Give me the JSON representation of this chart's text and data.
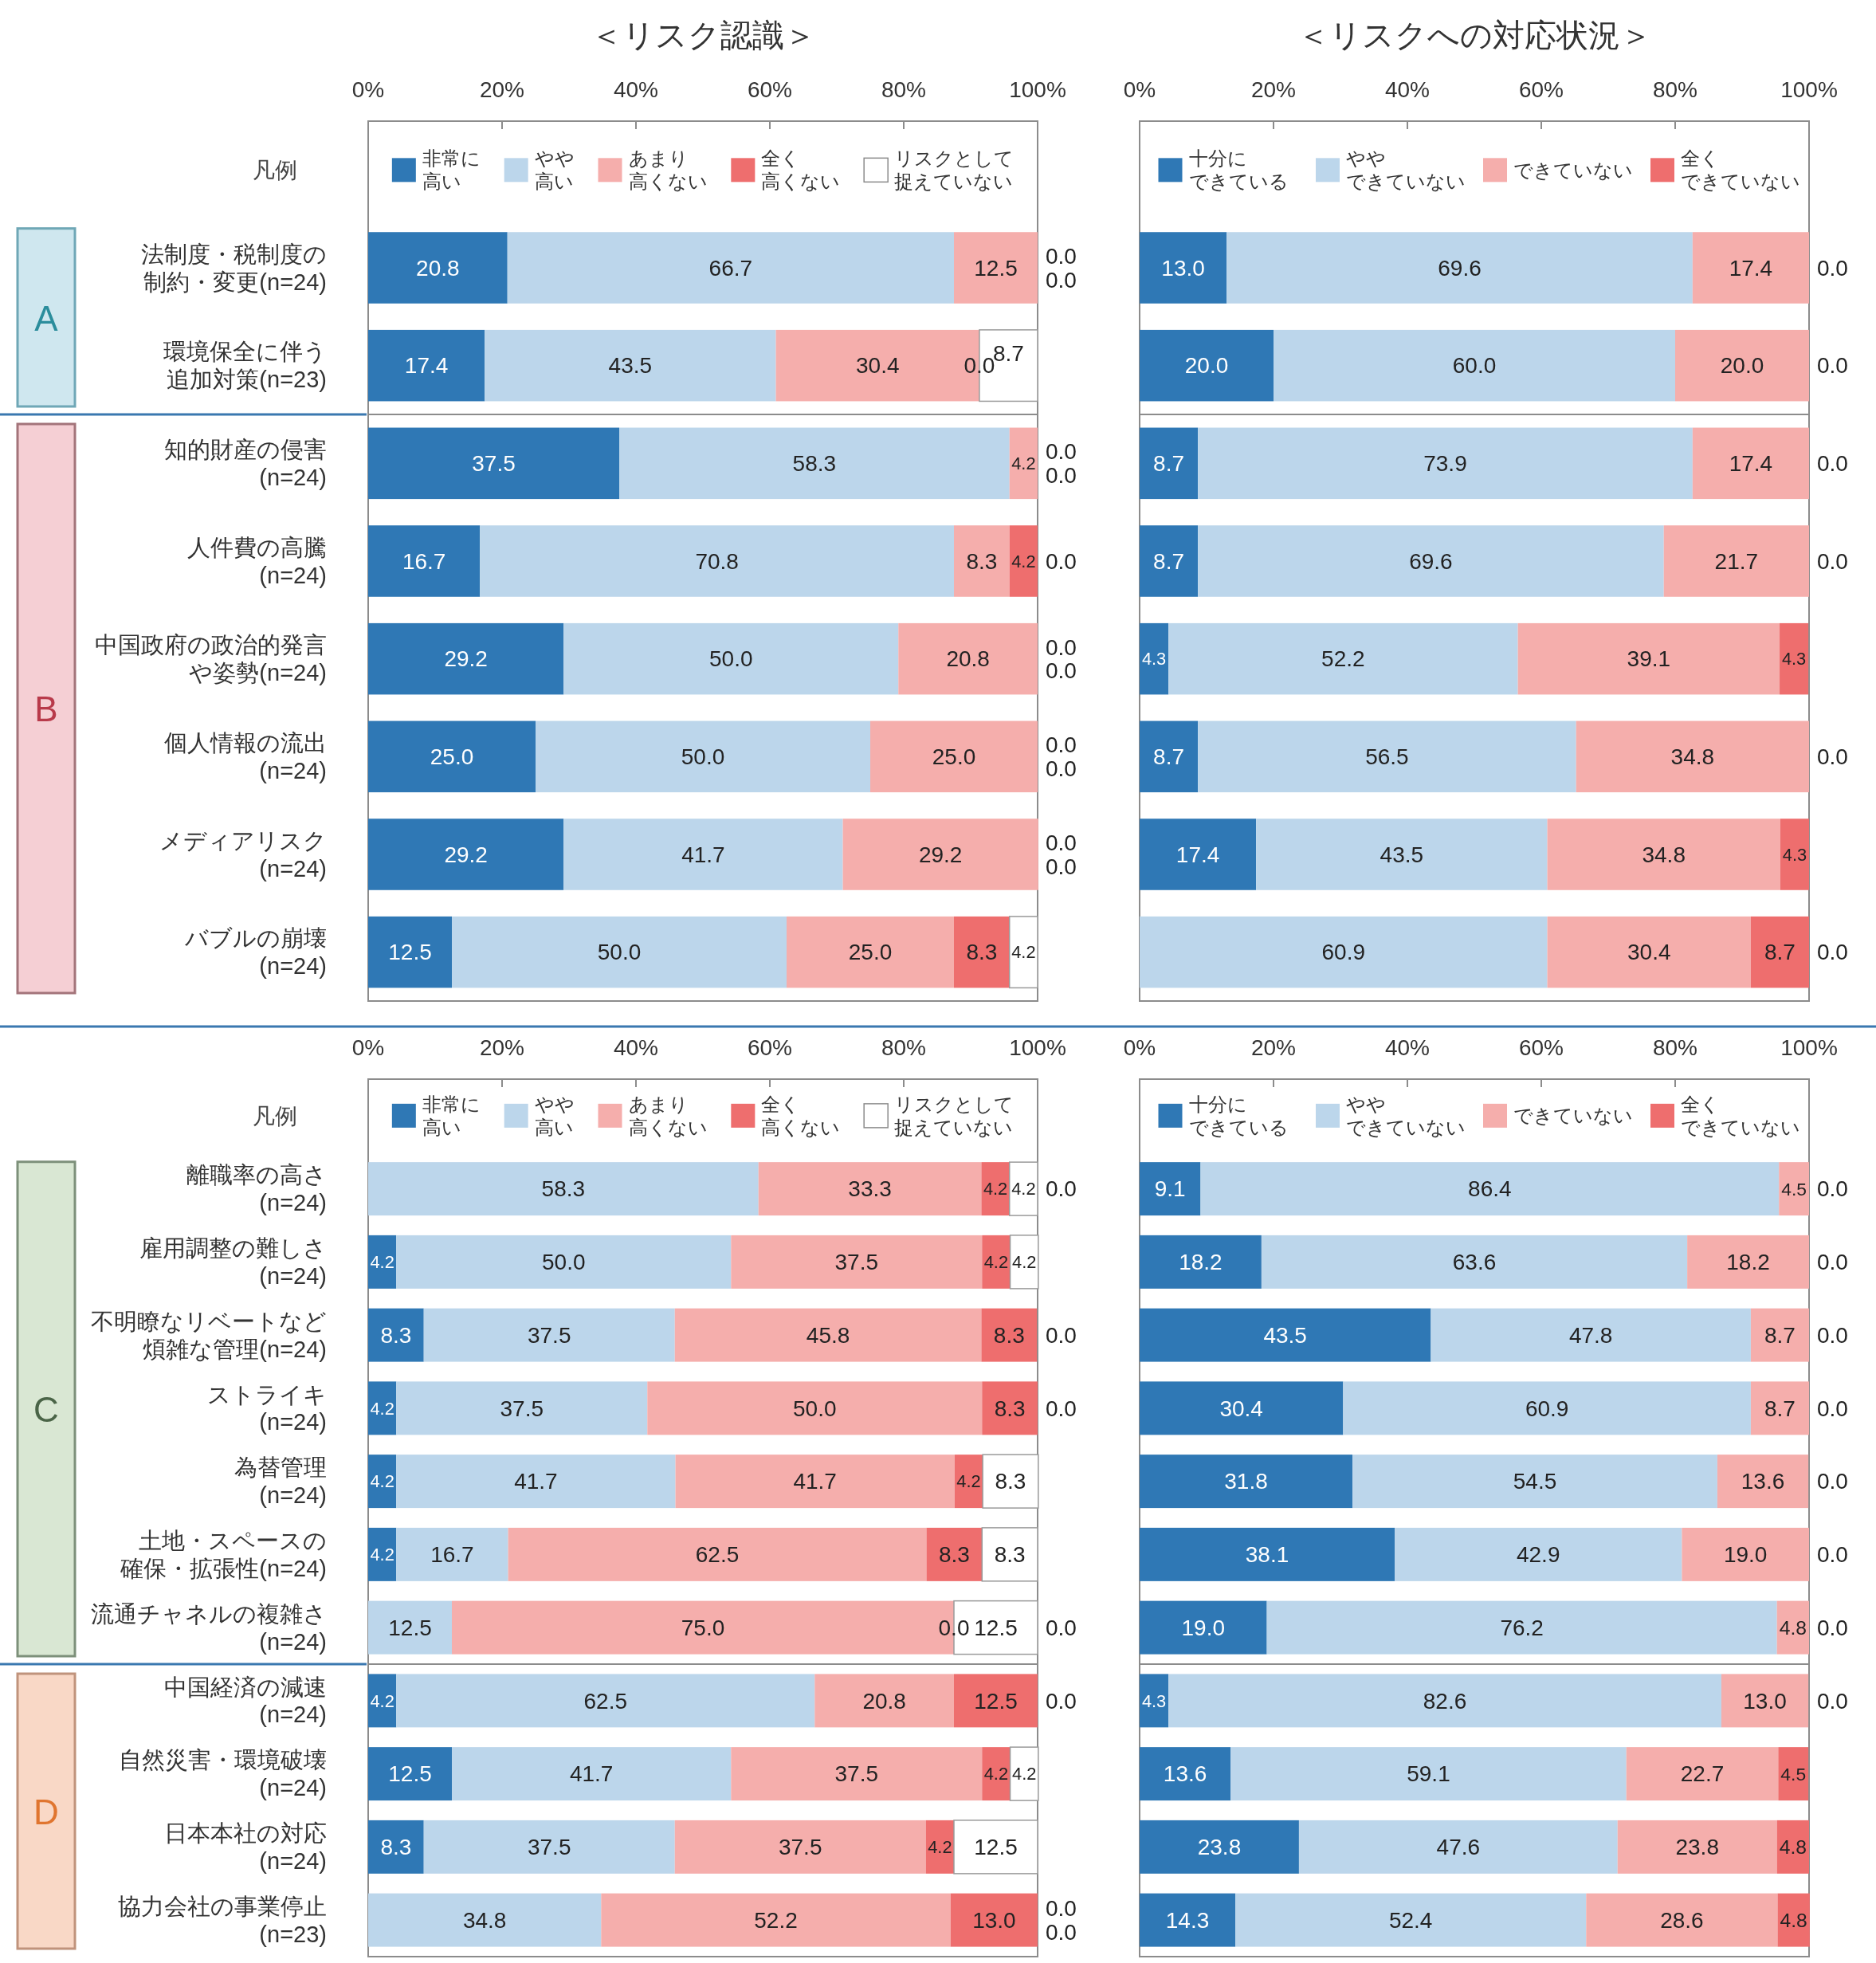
{
  "chart_data": [
    {
      "type": "bar",
      "orientation": "horizontal",
      "stacked": true,
      "title": "＜リスク認識＞",
      "legend": "top",
      "legend_title": "凡例",
      "annotations": [
        "A"
      ],
      "categories": [
        "法制度・税制度の制約・変更(n=24)",
        "環境保全に伴う追加対策(n=23)"
      ],
      "series": [
        {
          "name": "非常に高い",
          "color": "#2f78b5",
          "values": [
            20.8,
            17.4
          ],
          "value_labels": [
            "20.8",
            "17.4"
          ]
        },
        {
          "name": "やや高い",
          "color": "#bcd6eb",
          "values": [
            66.7,
            43.5
          ],
          "value_labels": [
            "66.7",
            "43.5"
          ]
        },
        {
          "name": "あまり高くない",
          "color": "#f5aeac",
          "values": [
            12.5,
            30.4
          ],
          "value_labels": [
            "12.5",
            "30.4"
          ]
        },
        {
          "name": "全く高くない",
          "color": "#ee6e6e",
          "values": [
            0.0,
            0.0
          ],
          "value_labels": [
            "0.0",
            "0.0"
          ]
        },
        {
          "name": "リスクとして捉えていない",
          "color": "#ffffff",
          "values": [
            0.0,
            8.7
          ],
          "value_labels": [
            "0.0",
            "8.7"
          ]
        }
      ],
      "xlim": [
        0,
        100
      ],
      "xticks": [
        {
          "value": 0,
          "label": "0%"
        },
        {
          "value": 20,
          "label": "20%"
        },
        {
          "value": 40,
          "label": "40%"
        },
        {
          "value": 60,
          "label": "60%"
        },
        {
          "value": 80,
          "label": "80%"
        },
        {
          "value": 100,
          "label": "100%"
        }
      ]
    },
    {
      "type": "bar",
      "orientation": "horizontal",
      "stacked": true,
      "title": "＜リスクへの対応状況＞",
      "legend": "top",
      "tick_labels": "x",
      "categories": [
        null,
        null
      ],
      "series": [
        {
          "name": "十分にできている",
          "color": "#2f78b5",
          "values": [
            13.0,
            20.0
          ],
          "value_labels": [
            "13.0",
            "20.0"
          ]
        },
        {
          "name": "ややできていない",
          "color": "#bcd6eb",
          "values": [
            69.6,
            60.0
          ],
          "value_labels": [
            "69.6",
            "60.0"
          ]
        },
        {
          "name": "できていない",
          "color": "#f5aeac",
          "values": [
            17.4,
            20.0
          ],
          "value_labels": [
            "17.4",
            "20.0"
          ]
        },
        {
          "name": "全くできていない",
          "color": "#ee6e6e",
          "values": [
            0.0,
            0.0
          ],
          "value_labels": [
            "0.0",
            "0.0"
          ]
        }
      ],
      "xlim": [
        0,
        100
      ],
      "xticks": [
        {
          "value": 0,
          "label": "0%"
        },
        {
          "value": 20,
          "label": "20%"
        },
        {
          "value": 40,
          "label": "40%"
        },
        {
          "value": 60,
          "label": "60%"
        },
        {
          "value": 80,
          "label": "80%"
        },
        {
          "value": 100,
          "label": "100%"
        }
      ]
    },
    {
      "type": "bar",
      "orientation": "horizontal",
      "stacked": true,
      "tick_labels": "y",
      "annotations": [
        "B"
      ],
      "categories": [
        "知的財産の侵害(n=24)",
        "人件費の高騰(n=24)",
        "中国政府の政治的発言や姿勢(n=24)",
        "個人情報の流出(n=24)",
        "メディアリスク(n=24)",
        "バブルの崩壊(n=24)"
      ],
      "series": [
        {
          "color": "#2f78b5",
          "values": [
            37.5,
            16.7,
            29.2,
            25.0,
            29.2,
            12.5
          ],
          "value_labels": [
            "37.5",
            "16.7",
            "29.2",
            "25.0",
            "29.2",
            "12.5"
          ]
        },
        {
          "color": "#bcd6eb",
          "values": [
            58.3,
            70.8,
            50.0,
            50.0,
            41.7,
            50.0
          ],
          "value_labels": [
            "58.3",
            "70.8",
            "50.0",
            "50.0",
            "41.7",
            "50.0"
          ]
        },
        {
          "color": "#f5aeac",
          "values": [
            4.2,
            8.3,
            20.8,
            25.0,
            29.2,
            25.0
          ],
          "value_labels": [
            "4.2",
            "8.3",
            "20.8",
            "25.0",
            "29.2",
            "25.0"
          ]
        },
        {
          "color": "#ee6e6e",
          "values": [
            0.0,
            4.2,
            0.0,
            0.0,
            0.0,
            8.3
          ],
          "value_labels": [
            "0.0",
            "4.2",
            "0.0",
            "0.0",
            "0.0",
            "8.3"
          ]
        },
        {
          "color": "#ffffff",
          "values": [
            0.0,
            0.0,
            0.0,
            0.0,
            0.0,
            4.2
          ],
          "value_labels": [
            "0.0",
            "0.0",
            "0.0",
            "0.0",
            "0.0",
            "4.2"
          ]
        }
      ],
      "xlim": [
        0,
        100
      ]
    },
    {
      "type": "bar",
      "orientation": "horizontal",
      "stacked": true,
      "tick_labels": false,
      "categories": [
        null,
        null,
        null,
        null,
        null,
        null
      ],
      "series": [
        {
          "color": "#2f78b5",
          "values": [
            8.7,
            8.7,
            4.3,
            8.7,
            17.4,
            0.0
          ],
          "value_labels": [
            "8.7",
            "8.7",
            "4.3",
            "8.7",
            "17.4",
            "0.0"
          ]
        },
        {
          "color": "#bcd6eb",
          "values": [
            73.9,
            69.6,
            52.2,
            56.5,
            43.5,
            60.9
          ],
          "value_labels": [
            "73.9",
            "69.6",
            "52.2",
            "56.5",
            "43.5",
            "60.9"
          ]
        },
        {
          "color": "#f5aeac",
          "values": [
            17.4,
            21.7,
            39.1,
            34.8,
            34.8,
            30.4
          ],
          "value_labels": [
            "17.4",
            "21.7",
            "39.1",
            "34.8",
            "34.8",
            "30.4"
          ]
        },
        {
          "color": "#ee6e6e",
          "values": [
            0.0,
            0.0,
            4.3,
            0.0,
            4.3,
            8.7
          ],
          "value_labels": [
            "0.0",
            "0.0",
            "4.3",
            "0.0",
            "4.3",
            "8.7"
          ]
        }
      ],
      "xlim": [
        0,
        100
      ]
    },
    {
      "type": "bar",
      "orientation": "horizontal",
      "stacked": true,
      "legend": "top",
      "legend_title": "凡例",
      "annotations": [
        "C"
      ],
      "categories": [
        "離職率の高さ(n=24)",
        "雇用調整の難しさ(n=24)",
        "不明瞭なリベートなど煩雑な管理(n=24)",
        "ストライキ(n=24)",
        "為替管理(n=24)",
        "土地・スペースの確保・拡張性(n=24)",
        "流通チャネルの複雑さ(n=24)"
      ],
      "series": [
        {
          "name": "非常に高い",
          "color": "#2f78b5",
          "values": [
            0.0,
            4.2,
            8.3,
            4.2,
            4.2,
            4.2,
            0.0
          ],
          "value_labels": [
            "0.0",
            "4.2",
            "8.3",
            "4.2",
            "4.2",
            "4.2",
            "0.0"
          ]
        },
        {
          "name": "やや高い",
          "color": "#bcd6eb",
          "values": [
            58.3,
            50.0,
            37.5,
            37.5,
            41.7,
            16.7,
            12.5
          ],
          "value_labels": [
            "58.3",
            "50.0",
            "37.5",
            "37.5",
            "41.7",
            "16.7",
            "12.5"
          ]
        },
        {
          "name": "あまり高くない",
          "color": "#f5aeac",
          "values": [
            33.3,
            37.5,
            45.8,
            50.0,
            41.7,
            62.5,
            75.0
          ],
          "value_labels": [
            "33.3",
            "37.5",
            "45.8",
            "50.0",
            "41.7",
            "62.5",
            "75.0"
          ]
        },
        {
          "name": "全く高くない",
          "color": "#ee6e6e",
          "values": [
            4.2,
            4.2,
            8.3,
            8.3,
            4.2,
            8.3,
            0.0
          ],
          "value_labels": [
            "4.2",
            "4.2",
            "8.3",
            "8.3",
            "4.2",
            "8.3",
            "0.0"
          ]
        },
        {
          "name": "リスクとして捉えていない",
          "color": "#ffffff",
          "values": [
            4.2,
            4.2,
            0.0,
            0.0,
            8.3,
            8.3,
            12.5
          ],
          "value_labels": [
            "4.2",
            "4.2",
            "0.0",
            "0.0",
            "8.3",
            "8.3",
            "12.5"
          ]
        }
      ],
      "xlim": [
        0,
        100
      ],
      "xticks": [
        {
          "value": 0,
          "label": "0%"
        },
        {
          "value": 20,
          "label": "20%"
        },
        {
          "value": 40,
          "label": "40%"
        },
        {
          "value": 60,
          "label": "60%"
        },
        {
          "value": 80,
          "label": "80%"
        },
        {
          "value": 100,
          "label": "100%"
        }
      ]
    },
    {
      "type": "bar",
      "orientation": "horizontal",
      "stacked": true,
      "legend": "top",
      "tick_labels": "x",
      "categories": [
        null,
        null,
        null,
        null,
        null,
        null,
        null
      ],
      "series": [
        {
          "name": "十分にできている",
          "color": "#2f78b5",
          "values": [
            9.1,
            18.2,
            43.5,
            30.4,
            31.8,
            38.1,
            19.0
          ],
          "value_labels": [
            "9.1",
            "18.2",
            "43.5",
            "30.4",
            "31.8",
            "38.1",
            "19.0"
          ]
        },
        {
          "name": "ややできていない",
          "color": "#bcd6eb",
          "values": [
            86.4,
            63.6,
            47.8,
            60.9,
            54.5,
            42.9,
            76.2
          ],
          "value_labels": [
            "86.4",
            "63.6",
            "47.8",
            "60.9",
            "54.5",
            "42.9",
            "76.2"
          ]
        },
        {
          "name": "できていない",
          "color": "#f5aeac",
          "values": [
            4.5,
            18.2,
            8.7,
            8.7,
            13.6,
            19.0,
            4.8
          ],
          "value_labels": [
            "4.5",
            "18.2",
            "8.7",
            "8.7",
            "13.6",
            "19.0",
            "4.8"
          ]
        },
        {
          "name": "全くできていない",
          "color": "#ee6e6e",
          "values": [
            0.0,
            0.0,
            0.0,
            0.0,
            0.0,
            0.0,
            0.0
          ],
          "value_labels": [
            "0.0",
            "0.0",
            "0.0",
            "0.0",
            "0.0",
            "0.0",
            "0.0"
          ]
        }
      ],
      "xlim": [
        0,
        100
      ],
      "xticks": [
        {
          "value": 0,
          "label": "0%"
        },
        {
          "value": 20,
          "label": "20%"
        },
        {
          "value": 40,
          "label": "40%"
        },
        {
          "value": 60,
          "label": "60%"
        },
        {
          "value": 80,
          "label": "80%"
        },
        {
          "value": 100,
          "label": "100%"
        }
      ]
    },
    {
      "type": "bar",
      "orientation": "horizontal",
      "stacked": true,
      "tick_labels": "y",
      "annotations": [
        "D"
      ],
      "categories": [
        "中国経済の減速(n=24)",
        "自然災害・環境破壊(n=24)",
        "日本本社の対応(n=24)",
        "協力会社の事業停止(n=23)"
      ],
      "series": [
        {
          "color": "#2f78b5",
          "values": [
            4.2,
            12.5,
            8.3,
            0.0
          ],
          "value_labels": [
            "4.2",
            "12.5",
            "8.3",
            "0.0"
          ]
        },
        {
          "color": "#bcd6eb",
          "values": [
            62.5,
            41.7,
            37.5,
            34.8
          ],
          "value_labels": [
            "62.5",
            "41.7",
            "37.5",
            "34.8"
          ]
        },
        {
          "color": "#f5aeac",
          "values": [
            20.8,
            37.5,
            37.5,
            52.2
          ],
          "value_labels": [
            "20.8",
            "37.5",
            "37.5",
            "52.2"
          ]
        },
        {
          "color": "#ee6e6e",
          "values": [
            12.5,
            4.2,
            4.2,
            13.0
          ],
          "value_labels": [
            "12.5",
            "4.2",
            "4.2",
            "13.0"
          ]
        },
        {
          "color": "#ffffff",
          "values": [
            0.0,
            4.2,
            12.5,
            0.0
          ],
          "value_labels": [
            "0.0",
            "4.2",
            "12.5",
            "0.0"
          ]
        }
      ],
      "xlim": [
        0,
        100
      ]
    },
    {
      "type": "bar",
      "orientation": "horizontal",
      "stacked": true,
      "tick_labels": false,
      "categories": [
        null,
        null,
        null,
        null
      ],
      "series": [
        {
          "color": "#2f78b5",
          "values": [
            4.3,
            13.6,
            23.8,
            14.3
          ],
          "value_labels": [
            "4.3",
            "13.6",
            "23.8",
            "14.3"
          ]
        },
        {
          "color": "#bcd6eb",
          "values": [
            82.6,
            59.1,
            47.6,
            52.4
          ],
          "value_labels": [
            "82.6",
            "59.1",
            "47.6",
            "52.4"
          ]
        },
        {
          "color": "#f5aeac",
          "values": [
            13.0,
            22.7,
            23.8,
            28.6
          ],
          "value_labels": [
            "13.0",
            "22.7",
            "23.8",
            "28.6"
          ]
        },
        {
          "color": "#ee6e6e",
          "values": [
            0.0,
            4.5,
            4.8,
            4.8
          ],
          "value_labels": [
            "0.0",
            "4.5",
            "4.8",
            "4.8"
          ]
        }
      ],
      "xlim": [
        0,
        100
      ]
    }
  ]
}
